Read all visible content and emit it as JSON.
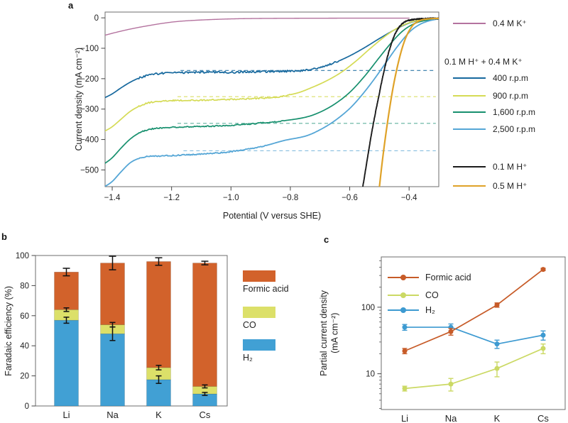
{
  "panels": {
    "a": "a",
    "b": "b",
    "c": "c"
  },
  "panel_a": {
    "xlabel": "Potential (V versus SHE)",
    "ylabel": "Current density (mA cm⁻²)"
  },
  "panel_b": {
    "ylabel": "Faradaic efficiency (%)"
  },
  "panel_c": {
    "ylabel_line1": "Partial current density",
    "ylabel_line2": "(mA cm⁻²)"
  },
  "legend_a": {
    "top_item": {
      "label": "0.4 M K⁺",
      "color": "#b4739f"
    },
    "group_header": "0.1 M H⁺ + 0.4 M K⁺",
    "group_items": [
      {
        "label": "400 r.p.m",
        "color": "#17699e"
      },
      {
        "label": "900 r.p.m",
        "color": "#d5db55"
      },
      {
        "label": "1,600 r.p.m",
        "color": "#17906e"
      },
      {
        "label": "2,500 r.p.m",
        "color": "#55a6d6"
      }
    ],
    "bottom_items": [
      {
        "label": "0.1 M H⁺",
        "color": "#1b1b1b"
      },
      {
        "label": "0.5 M H⁺",
        "color": "#dfa228"
      }
    ]
  },
  "legend_b": {
    "items": [
      {
        "label": "Formic acid",
        "color": "#d2622b"
      },
      {
        "label": "CO",
        "color": "#dce069"
      },
      {
        "label": "H₂",
        "color": "#41a0d4"
      }
    ]
  },
  "legend_c": {
    "items": [
      {
        "label": "Formic acid",
        "color": "#c75b28"
      },
      {
        "label": "CO",
        "color": "#cbd964"
      },
      {
        "label": "H₂",
        "color": "#3d9ad1"
      }
    ]
  },
  "chart_data": [
    {
      "id": "a",
      "type": "line",
      "xlabel": "Potential (V versus SHE)",
      "ylabel": "Current density (mA cm⁻²)",
      "xlim": [
        -1.424,
        -0.3
      ],
      "ylim": [
        -555,
        19
      ],
      "xticks": [
        -1.4,
        -1.2,
        -1.0,
        -0.8,
        -0.6,
        -0.4
      ],
      "xtick_labels": [
        "−1.4",
        "−1.2",
        "−1.0",
        "−0.8",
        "−0.6",
        "−0.4"
      ],
      "yticks": [
        0,
        -100,
        -200,
        -300,
        -400,
        -500
      ],
      "ytick_labels": [
        "0",
        "−100",
        "−200",
        "−300",
        "−400",
        "−500"
      ],
      "ref_lines": [
        {
          "y": -173,
          "x1": -1.17,
          "x2": -0.31,
          "color": "#17699e"
        },
        {
          "y": -259,
          "x1": -1.18,
          "x2": -0.31,
          "color": "#d5db55"
        },
        {
          "y": -347,
          "x1": -1.18,
          "x2": -0.31,
          "color": "#4da893"
        },
        {
          "y": -437,
          "x1": -1.16,
          "x2": -0.31,
          "color": "#7cb8dc"
        }
      ],
      "series": [
        {
          "name": "0.4 M K⁺",
          "color": "#b4739f",
          "w": 1.4,
          "noise": 0,
          "noise_range": [
            0,
            0
          ],
          "points": [
            [
              -1.424,
              -57
            ],
            [
              -1.38,
              -46
            ],
            [
              -1.33,
              -35
            ],
            [
              -1.28,
              -26
            ],
            [
              -1.23,
              -18
            ],
            [
              -1.18,
              -12
            ],
            [
              -1.12,
              -8
            ],
            [
              -1.05,
              -5
            ],
            [
              -0.98,
              -3
            ],
            [
              -0.9,
              -2
            ],
            [
              -0.8,
              -1.5
            ],
            [
              -0.7,
              -1.2
            ],
            [
              -0.55,
              -1
            ],
            [
              -0.4,
              -1
            ]
          ]
        },
        {
          "name": "400 r.p.m",
          "color": "#17699e",
          "w": 1.7,
          "noise": 3.2,
          "noise_range": [
            -1.31,
            -0.64
          ],
          "points": [
            [
              -1.424,
              -262
            ],
            [
              -1.4,
              -250
            ],
            [
              -1.37,
              -230
            ],
            [
              -1.34,
              -212
            ],
            [
              -1.31,
              -198
            ],
            [
              -1.28,
              -189
            ],
            [
              -1.25,
              -184
            ],
            [
              -1.21,
              -181
            ],
            [
              -1.15,
              -180
            ],
            [
              -1.08,
              -179
            ],
            [
              -1.0,
              -179
            ],
            [
              -0.92,
              -177
            ],
            [
              -0.85,
              -176
            ],
            [
              -0.8,
              -175
            ],
            [
              -0.75,
              -172
            ],
            [
              -0.7,
              -163
            ],
            [
              -0.65,
              -147
            ],
            [
              -0.6,
              -125
            ],
            [
              -0.55,
              -98
            ],
            [
              -0.5,
              -68
            ],
            [
              -0.45,
              -40
            ],
            [
              -0.4,
              -17
            ],
            [
              -0.36,
              -8
            ],
            [
              -0.32,
              -4
            ],
            [
              -0.3,
              -3
            ]
          ]
        },
        {
          "name": "900 r.p.m",
          "color": "#d5db55",
          "w": 1.7,
          "noise": 2.2,
          "noise_range": [
            -1.31,
            -0.8
          ],
          "points": [
            [
              -1.424,
              -372
            ],
            [
              -1.4,
              -358
            ],
            [
              -1.37,
              -333
            ],
            [
              -1.34,
              -308
            ],
            [
              -1.31,
              -291
            ],
            [
              -1.28,
              -280
            ],
            [
              -1.25,
              -275
            ],
            [
              -1.2,
              -272
            ],
            [
              -1.12,
              -271
            ],
            [
              -1.04,
              -269
            ],
            [
              -0.96,
              -267
            ],
            [
              -0.9,
              -264
            ],
            [
              -0.85,
              -261
            ],
            [
              -0.78,
              -248
            ],
            [
              -0.73,
              -230
            ],
            [
              -0.68,
              -208
            ],
            [
              -0.63,
              -180
            ],
            [
              -0.58,
              -143
            ],
            [
              -0.53,
              -100
            ],
            [
              -0.48,
              -60
            ],
            [
              -0.44,
              -34
            ],
            [
              -0.4,
              -16
            ],
            [
              -0.36,
              -7
            ],
            [
              -0.3,
              -3
            ]
          ]
        },
        {
          "name": "1,600 r.p.m",
          "color": "#17906e",
          "w": 1.7,
          "noise": 2.0,
          "noise_range": [
            -1.31,
            -0.82
          ],
          "points": [
            [
              -1.424,
              -478
            ],
            [
              -1.4,
              -460
            ],
            [
              -1.37,
              -428
            ],
            [
              -1.34,
              -399
            ],
            [
              -1.31,
              -379
            ],
            [
              -1.28,
              -368
            ],
            [
              -1.25,
              -363
            ],
            [
              -1.2,
              -360
            ],
            [
              -1.12,
              -358
            ],
            [
              -1.04,
              -355
            ],
            [
              -0.96,
              -351
            ],
            [
              -0.88,
              -344
            ],
            [
              -0.82,
              -338
            ],
            [
              -0.75,
              -327
            ],
            [
              -0.7,
              -310
            ],
            [
              -0.65,
              -283
            ],
            [
              -0.6,
              -245
            ],
            [
              -0.55,
              -192
            ],
            [
              -0.5,
              -130
            ],
            [
              -0.46,
              -82
            ],
            [
              -0.42,
              -42
            ],
            [
              -0.38,
              -18
            ],
            [
              -0.34,
              -8
            ],
            [
              -0.3,
              -4
            ]
          ]
        },
        {
          "name": "2,500 r.p.m",
          "color": "#55a6d6",
          "w": 1.8,
          "noise": 2.0,
          "noise_range": [
            -1.31,
            -0.88
          ],
          "points": [
            [
              -1.424,
              -554
            ],
            [
              -1.4,
              -538
            ],
            [
              -1.37,
              -506
            ],
            [
              -1.34,
              -477
            ],
            [
              -1.31,
              -462
            ],
            [
              -1.28,
              -456
            ],
            [
              -1.24,
              -454
            ],
            [
              -1.18,
              -452
            ],
            [
              -1.1,
              -448
            ],
            [
              -1.02,
              -442
            ],
            [
              -0.95,
              -433
            ],
            [
              -0.88,
              -419
            ],
            [
              -0.82,
              -403
            ],
            [
              -0.75,
              -389
            ],
            [
              -0.7,
              -368
            ],
            [
              -0.65,
              -338
            ],
            [
              -0.6,
              -298
            ],
            [
              -0.56,
              -255
            ],
            [
              -0.52,
              -205
            ],
            [
              -0.48,
              -150
            ],
            [
              -0.44,
              -95
            ],
            [
              -0.4,
              -48
            ],
            [
              -0.37,
              -25
            ],
            [
              -0.34,
              -12
            ],
            [
              -0.31,
              -5
            ],
            [
              -0.3,
              -4
            ]
          ]
        },
        {
          "name": "0.1 M H⁺",
          "color": "#1b1b1b",
          "w": 1.9,
          "noise": 1.6,
          "noise_range": [
            -0.58,
            -0.3
          ],
          "points": [
            [
              -0.556,
              -556
            ],
            [
              -0.545,
              -490
            ],
            [
              -0.53,
              -400
            ],
            [
              -0.515,
              -320
            ],
            [
              -0.5,
              -248
            ],
            [
              -0.488,
              -190
            ],
            [
              -0.476,
              -140
            ],
            [
              -0.464,
              -98
            ],
            [
              -0.452,
              -64
            ],
            [
              -0.44,
              -40
            ],
            [
              -0.428,
              -24
            ],
            [
              -0.415,
              -14
            ],
            [
              -0.4,
              -8
            ],
            [
              -0.37,
              -4
            ],
            [
              -0.33,
              -2
            ],
            [
              -0.3,
              -2
            ]
          ]
        },
        {
          "name": "0.5 M H⁺",
          "color": "#dfa228",
          "w": 2.2,
          "noise": 0,
          "noise_range": [
            0,
            0
          ],
          "points": [
            [
              -0.5,
              -556
            ],
            [
              -0.49,
              -470
            ],
            [
              -0.478,
              -380
            ],
            [
              -0.466,
              -300
            ],
            [
              -0.455,
              -235
            ],
            [
              -0.445,
              -185
            ],
            [
              -0.435,
              -142
            ],
            [
              -0.425,
              -105
            ],
            [
              -0.415,
              -75
            ],
            [
              -0.405,
              -52
            ],
            [
              -0.395,
              -35
            ],
            [
              -0.385,
              -22
            ],
            [
              -0.372,
              -13
            ],
            [
              -0.358,
              -7
            ],
            [
              -0.34,
              -4
            ],
            [
              -0.32,
              -2.5
            ],
            [
              -0.3,
              -2
            ]
          ]
        }
      ]
    },
    {
      "id": "b",
      "type": "stacked_bar",
      "categories": [
        "Li",
        "Na",
        "K",
        "Cs"
      ],
      "ylabel": "Faradaic efficiency (%)",
      "ylim": [
        0,
        100
      ],
      "yticks": [
        0,
        20,
        40,
        60,
        80,
        100
      ],
      "ytick_labels": [
        "0",
        "20",
        "40",
        "60",
        "80",
        "100"
      ],
      "series": [
        {
          "name": "H₂",
          "color": "#41a0d4",
          "values": [
            57,
            48,
            17.5,
            8
          ]
        },
        {
          "name": "CO",
          "color": "#dce069",
          "values": [
            7,
            6,
            8,
            5
          ]
        },
        {
          "name": "Formic acid",
          "color": "#d2622b",
          "values": [
            25,
            41,
            70.5,
            82
          ]
        }
      ],
      "totals": [
        89,
        95,
        96,
        95
      ],
      "error_bars": [
        [
          [
            57,
            2
          ],
          [
            64,
            1.2
          ],
          [
            89,
            2.5
          ]
        ],
        [
          [
            48,
            4.5
          ],
          [
            54,
            1.5
          ],
          [
            95,
            4.5
          ]
        ],
        [
          [
            17.5,
            2.5
          ],
          [
            25.5,
            1.5
          ],
          [
            96,
            2.5
          ]
        ],
        [
          [
            8,
            1
          ],
          [
            13,
            1
          ],
          [
            95,
            1.2
          ]
        ]
      ]
    },
    {
      "id": "c",
      "type": "scatter_line_log",
      "categories": [
        "Li",
        "Na",
        "K",
        "Cs"
      ],
      "ylabel": "Partial current density (mA cm⁻²)",
      "ylim": [
        2.9,
        570
      ],
      "yticks": [
        10,
        100
      ],
      "ytick_labels": [
        "10",
        "100"
      ],
      "series": [
        {
          "name": "Formic acid",
          "color": "#c75b28",
          "values": [
            22,
            43,
            108,
            370
          ],
          "errors": [
            2,
            5,
            8,
            15
          ]
        },
        {
          "name": "CO",
          "color": "#cbd964",
          "values": [
            6,
            7,
            12,
            24
          ],
          "errors": [
            0.5,
            1.5,
            3,
            4
          ]
        },
        {
          "name": "H₂",
          "color": "#3d9ad1",
          "values": [
            50,
            50,
            28,
            38
          ],
          "errors": [
            5,
            6,
            4,
            6
          ]
        }
      ]
    }
  ]
}
